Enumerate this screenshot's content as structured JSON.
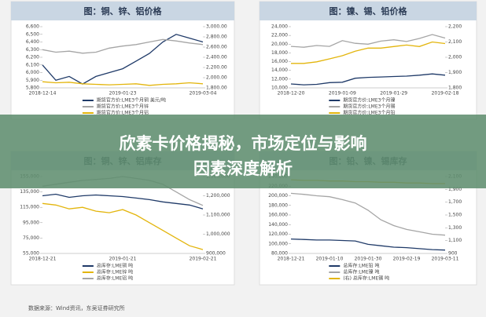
{
  "banner": {
    "title": "欣素卡价格揭秘，市场定位与影响因素深度解析"
  },
  "source": "数据来源：Wind资讯，东吴证券研究所",
  "chart_data": [
    {
      "type": "line",
      "title": "图：铜、锌、铝价格",
      "categories": [
        "2018-12-14",
        null,
        null,
        null,
        null,
        null,
        "2019-01-23",
        null,
        null,
        null,
        null,
        null,
        "2019-03-04"
      ],
      "ylim": [
        5800,
        6600
      ],
      "yticks": [
        {
          "value": 5800,
          "label": "5,800"
        },
        {
          "value": 5900,
          "label": "5,900"
        },
        {
          "value": 6000,
          "label": "6,000"
        },
        {
          "value": 6100,
          "label": "6,100"
        },
        {
          "value": 6200,
          "label": "6,200"
        },
        {
          "value": 6300,
          "label": "6,300"
        },
        {
          "value": 6400,
          "label": "6,400"
        },
        {
          "value": 6500,
          "label": "6,500"
        },
        {
          "value": 6600,
          "label": "6,600"
        }
      ],
      "y2lim": [
        1800,
        3000
      ],
      "y2ticks": [
        {
          "value": 1800,
          "label": "1,800.00"
        },
        {
          "value": 2000,
          "label": "2,000.00"
        },
        {
          "value": 2200,
          "label": "2,200.00"
        },
        {
          "value": 2400,
          "label": "2,400.00"
        },
        {
          "value": 2600,
          "label": "2,600.00"
        },
        {
          "value": 2800,
          "label": "2,800.00"
        },
        {
          "value": 3000,
          "label": "3,000.00"
        }
      ],
      "series": [
        {
          "name": "期货官方价:LME3个月铜 美元/吨",
          "color": "#1f3a68",
          "values": [
            6100,
            5900,
            5950,
            5850,
            5950,
            6000,
            6050,
            6150,
            6250,
            6400,
            6500,
            6450,
            6400
          ]
        },
        {
          "name": "期货官方价:LME3个月锌",
          "color": "#a5a5a5",
          "axis": "y2",
          "values": [
            2550,
            2500,
            2520,
            2480,
            2500,
            2580,
            2620,
            2650,
            2700,
            2750,
            2720,
            2680,
            2650
          ]
        },
        {
          "name": "期货官方价:LME3个月铝",
          "color": "#e3b50c",
          "axis": "y2",
          "values": [
            1920,
            1900,
            1910,
            1880,
            1870,
            1860,
            1870,
            1880,
            1850,
            1870,
            1880,
            1900,
            1880
          ]
        }
      ]
    },
    {
      "type": "line",
      "title": "图：镍、锡、铅价格",
      "categories": [
        "2018-12-20",
        null,
        null,
        null,
        "2019-01-09",
        null,
        null,
        null,
        "2019-01-29",
        null,
        null,
        null,
        "2019-02-18"
      ],
      "ylim": [
        10000,
        24000
      ],
      "yticks": [
        {
          "value": 10000,
          "label": "10,000"
        },
        {
          "value": 12000,
          "label": "12,000"
        },
        {
          "value": 14000,
          "label": "14,000"
        },
        {
          "value": 16000,
          "label": "16,000"
        },
        {
          "value": 18000,
          "label": "18,000"
        },
        {
          "value": 20000,
          "label": "20,000"
        },
        {
          "value": 22000,
          "label": "22,000"
        },
        {
          "value": 24000,
          "label": "24,000"
        }
      ],
      "y2lim": [
        1800,
        2200
      ],
      "y2ticks": [
        {
          "value": 1800,
          "label": "1,800"
        },
        {
          "value": 1900,
          "label": "1,900"
        },
        {
          "value": 2000,
          "label": "2,000"
        },
        {
          "value": 2100,
          "label": "2,100"
        },
        {
          "value": 2200,
          "label": "2,200"
        }
      ],
      "series": [
        {
          "name": "期货官方价:LME3个月镍",
          "color": "#1f3a68",
          "values": [
            10900,
            10700,
            10800,
            11200,
            11300,
            12200,
            12400,
            12500,
            12600,
            12700,
            12900,
            13200,
            12900
          ]
        },
        {
          "name": "期货官方价:LME3个月锡",
          "color": "#a5a5a5",
          "values": [
            19500,
            19300,
            19700,
            19500,
            20800,
            20200,
            20000,
            20700,
            21000,
            20600,
            21300,
            22200,
            21400
          ]
        },
        {
          "name": "期货官方价:LME3个月铅",
          "color": "#e3b50c",
          "axis": "y2",
          "values": [
            1960,
            1960,
            1970,
            1990,
            2010,
            2040,
            2060,
            2060,
            2070,
            2080,
            2070,
            2100,
            2090
          ]
        }
      ]
    },
    {
      "type": "line",
      "title": "图：铜、锌、铝库存",
      "categories": [
        "2018-12-21",
        null,
        null,
        null,
        null,
        null,
        "2019-01-21",
        null,
        null,
        null,
        null,
        null,
        "2019-02-21"
      ],
      "ylim": [
        55000,
        155000
      ],
      "yticks": [
        {
          "value": 55000,
          "label": "55,000"
        },
        {
          "value": 75000,
          "label": "75,000"
        },
        {
          "value": 95000,
          "label": "95,000"
        },
        {
          "value": 115000,
          "label": "115,000"
        },
        {
          "value": 135000,
          "label": "135,000"
        },
        {
          "value": 155000,
          "label": "155,000"
        }
      ],
      "y2lim": [
        900000,
        1300000
      ],
      "y2ticks": [
        {
          "value": 900000,
          "label": "900,000"
        },
        {
          "value": 1000000,
          "label": "1,000,000"
        },
        {
          "value": 1100000,
          "label": "1,100,000"
        },
        {
          "value": 1200000,
          "label": "1,200,000"
        },
        {
          "value": 1300000,
          "label": "1,300,000"
        }
      ],
      "series": [
        {
          "name": "总库存:LME铜 吨",
          "color": "#1f3a68",
          "values": [
            130000,
            132000,
            128000,
            130000,
            131000,
            130000,
            129000,
            127000,
            125000,
            122000,
            120000,
            118000,
            113000
          ]
        },
        {
          "name": "总库存:LME锌 吨",
          "color": "#e3b50c",
          "values": [
            120000,
            118000,
            113000,
            115000,
            110000,
            108000,
            112000,
            105000,
            95000,
            85000,
            75000,
            65000,
            60000
          ]
        },
        {
          "name": "总库存:LME铝 吨",
          "color": "#a5a5a5",
          "axis": "y2",
          "values": [
            1250000,
            1260000,
            1270000,
            1280000,
            1285000,
            1290000,
            1300000,
            1290000,
            1280000,
            1260000,
            1220000,
            1180000,
            1150000
          ]
        }
      ]
    },
    {
      "type": "line",
      "title": "图：铅、镍、锡库存",
      "categories": [
        "2018-12-21",
        null,
        null,
        "2019-01-10",
        null,
        null,
        "2019-01-30",
        null,
        null,
        "2019-02-19",
        null,
        null,
        "2019-03-11"
      ],
      "ylim": [
        80000,
        240000
      ],
      "yticks": [
        {
          "value": 80000,
          "label": "80,000"
        },
        {
          "value": 100000,
          "label": "100,000"
        },
        {
          "value": 120000,
          "label": "120,000"
        },
        {
          "value": 140000,
          "label": "140,000"
        },
        {
          "value": 160000,
          "label": "160,000"
        },
        {
          "value": 180000,
          "label": "180,000"
        },
        {
          "value": 200000,
          "label": "200,000"
        },
        {
          "value": 220000,
          "label": "220,000"
        },
        {
          "value": 240000,
          "label": "240,000"
        }
      ],
      "y2lim": [
        900,
        2100
      ],
      "y2ticks": [
        900,
        {
          "value": 1100,
          "label": "1,100"
        },
        {
          "value": 1300,
          "label": "1,300"
        },
        {
          "value": 1500,
          "label": "1,500"
        },
        {
          "value": 1700,
          "label": "1,700"
        },
        {
          "value": 1900,
          "label": "1,900"
        },
        {
          "value": 2100,
          "label": "2,100"
        }
      ],
      "series": [
        {
          "name": "总库存:LME铅 吨",
          "color": "#1f3a68",
          "values": [
            110000,
            109000,
            108000,
            108000,
            107000,
            106000,
            99000,
            96000,
            93000,
            92000,
            90000,
            88000,
            87000
          ]
        },
        {
          "name": "总库存:LME镍 吨",
          "color": "#a5a5a5",
          "values": [
            205000,
            203000,
            200000,
            198000,
            192000,
            185000,
            170000,
            150000,
            138000,
            130000,
            125000,
            120000,
            118000
          ]
        },
        {
          "name": "(右) 总库存:LME锡 吨",
          "color": "#e3b50c",
          "axis": "y2",
          "values": [
            2050,
            2040,
            2040,
            2030,
            2030,
            2020,
            2020,
            2010,
            2010,
            2000,
            2000,
            1990,
            1990
          ]
        }
      ]
    }
  ]
}
